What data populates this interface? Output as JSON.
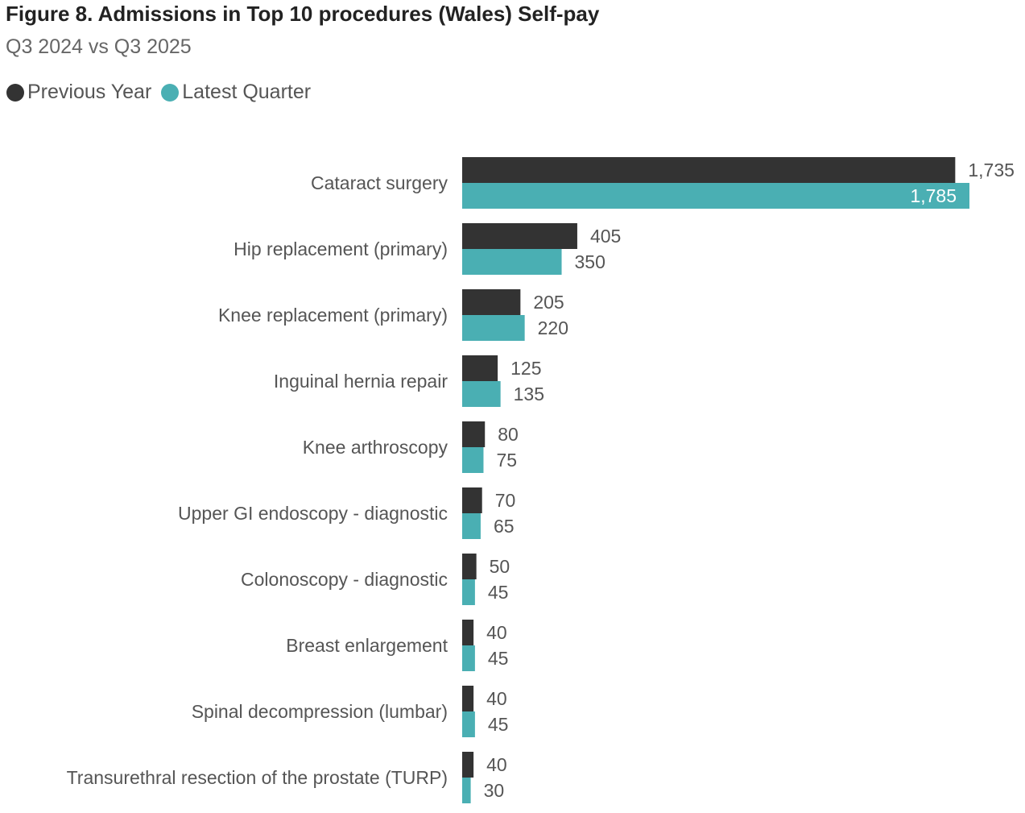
{
  "colors": {
    "previous": "#333333",
    "latest": "#4aafb3",
    "title": "#222222",
    "subtitle": "#666666",
    "label": "#555555",
    "inside_label": "#ffffff"
  },
  "chart_data": {
    "type": "bar",
    "orientation": "horizontal",
    "title": "Figure 8. Admissions in Top 10 procedures (Wales) Self-pay",
    "subtitle": "Q3 2024 vs Q3 2025",
    "xlabel": "",
    "ylabel": "",
    "xlim": [
      0,
      1785
    ],
    "grid": false,
    "legend_position": "top-left",
    "categories": [
      "Cataract surgery",
      "Hip replacement (primary)",
      "Knee replacement (primary)",
      "Inguinal hernia repair",
      "Knee arthroscopy",
      "Upper GI endoscopy - diagnostic",
      "Colonoscopy - diagnostic",
      "Breast enlargement",
      "Spinal decompression (lumbar)",
      "Transurethral resection of the prostate (TURP)"
    ],
    "series": [
      {
        "name": "Previous Year",
        "color": "#333333",
        "values": [
          1735,
          405,
          205,
          125,
          80,
          70,
          50,
          40,
          40,
          40
        ],
        "labels": [
          "1,735",
          "405",
          "205",
          "125",
          "80",
          "70",
          "50",
          "40",
          "40",
          "40"
        ]
      },
      {
        "name": "Latest Quarter",
        "color": "#4aafb3",
        "values": [
          1785,
          350,
          220,
          135,
          75,
          65,
          45,
          45,
          45,
          30
        ],
        "labels": [
          "1,785",
          "350",
          "220",
          "135",
          "75",
          "65",
          "45",
          "45",
          "45",
          "30"
        ]
      }
    ]
  }
}
